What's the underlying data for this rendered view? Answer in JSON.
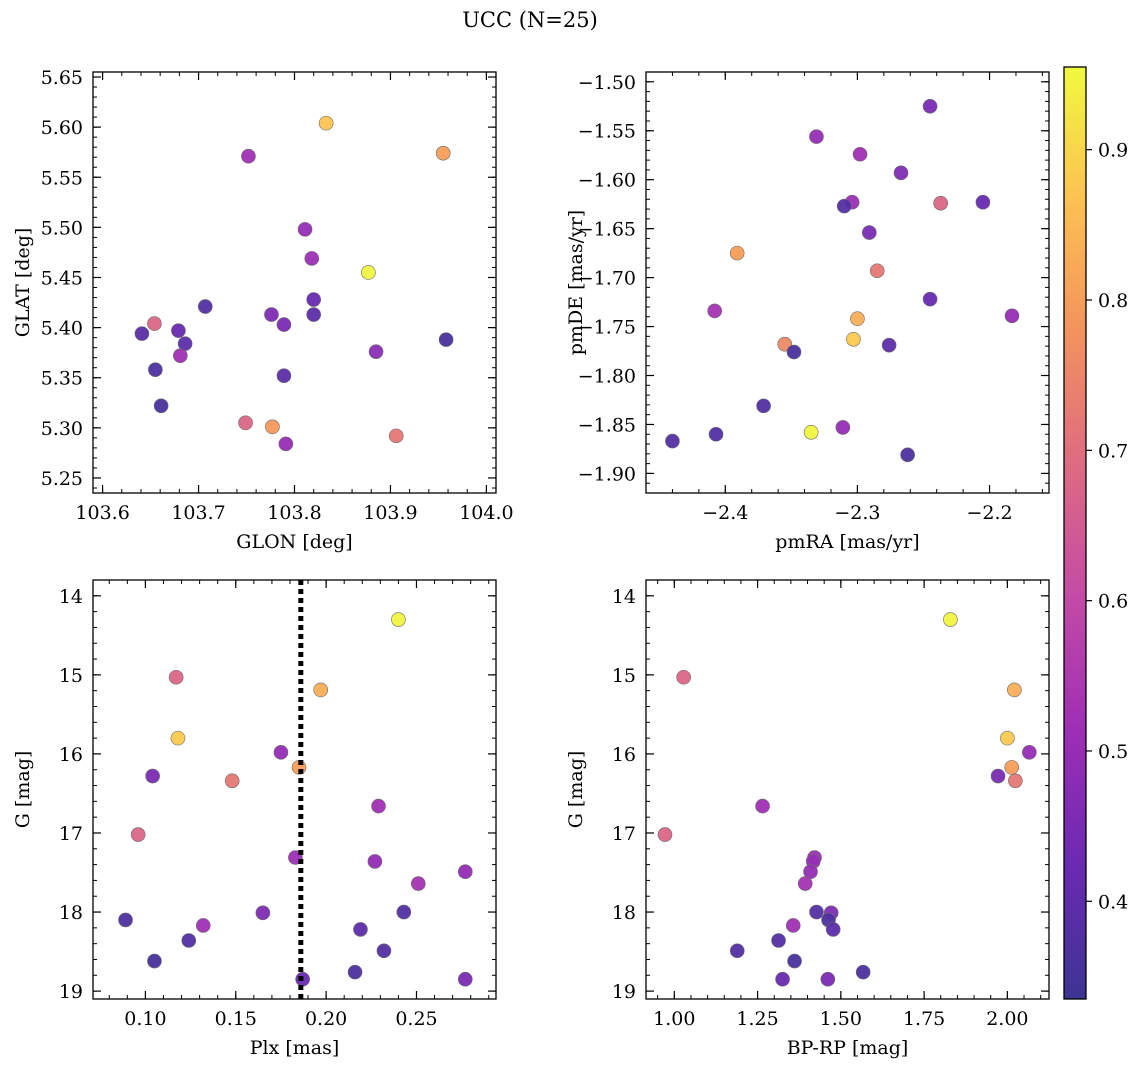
{
  "figure": {
    "title": "UCC (N=25)"
  },
  "colors": {
    "membership_colormap": "plasma",
    "cmap_stops": [
      "#3c3493",
      "#6a2ab2",
      "#9d2eb5",
      "#c24aa6",
      "#de6a82",
      "#f2925d",
      "#fdc152",
      "#f0f93f"
    ],
    "marker_edge": "#6b6b6b",
    "vertical_line": "#000000"
  },
  "colorbar": {
    "range": [
      0.335,
      0.955
    ],
    "ticks": [
      0.4,
      0.5,
      0.6,
      0.7,
      0.8,
      0.9
    ],
    "tick_labels": [
      "0.4",
      "0.5",
      "0.6",
      "0.7",
      "0.8",
      "0.9"
    ]
  },
  "chart_data": [
    {
      "type": "scatter",
      "id": "glon-glat",
      "xlabel": "GLON [deg]",
      "ylabel": "GLAT [deg]",
      "xlim": [
        103.59,
        104.01
      ],
      "ylim": [
        5.235,
        5.655
      ],
      "invert_y": false,
      "xticks": [
        103.6,
        103.7,
        103.8,
        103.9,
        104.0
      ],
      "xtick_labels": [
        "103.6",
        "103.7",
        "103.8",
        "103.9",
        "104.0"
      ],
      "yticks": [
        5.25,
        5.3,
        5.35,
        5.4,
        5.45,
        5.5,
        5.55,
        5.6,
        5.65
      ],
      "ytick_labels": [
        "5.25",
        "5.30",
        "5.35",
        "5.40",
        "5.45",
        "5.50",
        "5.55",
        "5.60",
        "5.65"
      ],
      "points": [
        {
          "x": 103.833,
          "y": 5.604,
          "c": 0.87
        },
        {
          "x": 103.955,
          "y": 5.574,
          "c": 0.8
        },
        {
          "x": 103.752,
          "y": 5.571,
          "c": 0.52
        },
        {
          "x": 103.811,
          "y": 5.498,
          "c": 0.5
        },
        {
          "x": 103.818,
          "y": 5.469,
          "c": 0.51
        },
        {
          "x": 103.877,
          "y": 5.455,
          "c": 0.95
        },
        {
          "x": 103.82,
          "y": 5.428,
          "c": 0.42
        },
        {
          "x": 103.707,
          "y": 5.421,
          "c": 0.38
        },
        {
          "x": 103.82,
          "y": 5.413,
          "c": 0.4
        },
        {
          "x": 103.776,
          "y": 5.413,
          "c": 0.46
        },
        {
          "x": 103.654,
          "y": 5.404,
          "c": 0.68
        },
        {
          "x": 103.789,
          "y": 5.403,
          "c": 0.45
        },
        {
          "x": 103.679,
          "y": 5.397,
          "c": 0.42
        },
        {
          "x": 103.641,
          "y": 5.394,
          "c": 0.39
        },
        {
          "x": 103.958,
          "y": 5.388,
          "c": 0.36
        },
        {
          "x": 103.686,
          "y": 5.384,
          "c": 0.4
        },
        {
          "x": 103.885,
          "y": 5.376,
          "c": 0.48
        },
        {
          "x": 103.681,
          "y": 5.372,
          "c": 0.52
        },
        {
          "x": 103.655,
          "y": 5.358,
          "c": 0.37
        },
        {
          "x": 103.789,
          "y": 5.352,
          "c": 0.4
        },
        {
          "x": 103.661,
          "y": 5.322,
          "c": 0.36
        },
        {
          "x": 103.749,
          "y": 5.305,
          "c": 0.68
        },
        {
          "x": 103.777,
          "y": 5.301,
          "c": 0.79
        },
        {
          "x": 103.906,
          "y": 5.292,
          "c": 0.72
        },
        {
          "x": 103.791,
          "y": 5.284,
          "c": 0.5
        }
      ]
    },
    {
      "type": "scatter",
      "id": "pmra-pmde",
      "xlabel": "pmRA [mas/yr]",
      "ylabel": "pmDE [mas/yr]",
      "xlim": [
        -2.46,
        -2.155
      ],
      "ylim": [
        -1.92,
        -1.49
      ],
      "invert_y": false,
      "xticks": [
        -2.4,
        -2.3,
        -2.2
      ],
      "xtick_labels": [
        "−2.4",
        "−2.3",
        "−2.2"
      ],
      "yticks": [
        -1.9,
        -1.85,
        -1.8,
        -1.75,
        -1.7,
        -1.65,
        -1.6,
        -1.55,
        -1.5
      ],
      "ytick_labels": [
        "−1.90",
        "−1.85",
        "−1.80",
        "−1.75",
        "−1.70",
        "−1.65",
        "−1.60",
        "−1.55",
        "−1.50"
      ],
      "points": [
        {
          "x": -2.245,
          "y": -1.525,
          "c": 0.45
        },
        {
          "x": -2.331,
          "y": -1.556,
          "c": 0.5
        },
        {
          "x": -2.298,
          "y": -1.574,
          "c": 0.52
        },
        {
          "x": -2.267,
          "y": -1.593,
          "c": 0.46
        },
        {
          "x": -2.304,
          "y": -1.623,
          "c": 0.51
        },
        {
          "x": -2.31,
          "y": -1.627,
          "c": 0.38
        },
        {
          "x": -2.237,
          "y": -1.624,
          "c": 0.68
        },
        {
          "x": -2.205,
          "y": -1.623,
          "c": 0.42
        },
        {
          "x": -2.291,
          "y": -1.654,
          "c": 0.45
        },
        {
          "x": -2.391,
          "y": -1.675,
          "c": 0.8
        },
        {
          "x": -2.285,
          "y": -1.693,
          "c": 0.72
        },
        {
          "x": -2.245,
          "y": -1.722,
          "c": 0.42
        },
        {
          "x": -2.408,
          "y": -1.734,
          "c": 0.53
        },
        {
          "x": -2.183,
          "y": -1.739,
          "c": 0.5
        },
        {
          "x": -2.3,
          "y": -1.742,
          "c": 0.83
        },
        {
          "x": -2.303,
          "y": -1.763,
          "c": 0.88
        },
        {
          "x": -2.355,
          "y": -1.768,
          "c": 0.76
        },
        {
          "x": -2.276,
          "y": -1.769,
          "c": 0.4
        },
        {
          "x": -2.348,
          "y": -1.776,
          "c": 0.36
        },
        {
          "x": -2.371,
          "y": -1.831,
          "c": 0.38
        },
        {
          "x": -2.311,
          "y": -1.853,
          "c": 0.5
        },
        {
          "x": -2.335,
          "y": -1.858,
          "c": 0.95
        },
        {
          "x": -2.407,
          "y": -1.86,
          "c": 0.38
        },
        {
          "x": -2.44,
          "y": -1.867,
          "c": 0.38
        },
        {
          "x": -2.262,
          "y": -1.881,
          "c": 0.37
        }
      ]
    },
    {
      "type": "scatter",
      "id": "plx-g",
      "xlabel": "Plx [mas]",
      "ylabel": "G [mag]",
      "xlim": [
        0.071,
        0.294
      ],
      "ylim": [
        13.8,
        19.1
      ],
      "invert_y": true,
      "xticks": [
        0.1,
        0.15,
        0.2,
        0.25
      ],
      "xtick_labels": [
        "0.10",
        "0.15",
        "0.20",
        "0.25"
      ],
      "yticks": [
        14,
        15,
        16,
        17,
        18,
        19
      ],
      "ytick_labels": [
        "14",
        "15",
        "16",
        "17",
        "18",
        "19"
      ],
      "vline": {
        "x": 0.186
      },
      "points": [
        {
          "x": 0.24,
          "y": 14.3,
          "c": 0.95
        },
        {
          "x": 0.117,
          "y": 15.03,
          "c": 0.68
        },
        {
          "x": 0.197,
          "y": 15.19,
          "c": 0.83
        },
        {
          "x": 0.118,
          "y": 15.8,
          "c": 0.88
        },
        {
          "x": 0.175,
          "y": 15.98,
          "c": 0.5
        },
        {
          "x": 0.185,
          "y": 16.17,
          "c": 0.8
        },
        {
          "x": 0.104,
          "y": 16.28,
          "c": 0.45
        },
        {
          "x": 0.148,
          "y": 16.34,
          "c": 0.72
        },
        {
          "x": 0.229,
          "y": 16.66,
          "c": 0.52
        },
        {
          "x": 0.096,
          "y": 17.02,
          "c": 0.68
        },
        {
          "x": 0.183,
          "y": 17.31,
          "c": 0.51
        },
        {
          "x": 0.227,
          "y": 17.36,
          "c": 0.5
        },
        {
          "x": 0.277,
          "y": 17.49,
          "c": 0.5
        },
        {
          "x": 0.251,
          "y": 17.64,
          "c": 0.53
        },
        {
          "x": 0.243,
          "y": 18.0,
          "c": 0.38
        },
        {
          "x": 0.165,
          "y": 18.01,
          "c": 0.46
        },
        {
          "x": 0.089,
          "y": 18.1,
          "c": 0.37
        },
        {
          "x": 0.132,
          "y": 18.17,
          "c": 0.52
        },
        {
          "x": 0.219,
          "y": 18.22,
          "c": 0.4
        },
        {
          "x": 0.124,
          "y": 18.36,
          "c": 0.38
        },
        {
          "x": 0.232,
          "y": 18.49,
          "c": 0.38
        },
        {
          "x": 0.105,
          "y": 18.62,
          "c": 0.36
        },
        {
          "x": 0.216,
          "y": 18.76,
          "c": 0.37
        },
        {
          "x": 0.187,
          "y": 18.85,
          "c": 0.42
        },
        {
          "x": 0.277,
          "y": 18.85,
          "c": 0.45
        }
      ]
    },
    {
      "type": "scatter",
      "id": "bprp-g",
      "xlabel": "BP-RP [mag]",
      "ylabel": "G [mag]",
      "xlim": [
        0.915,
        2.125
      ],
      "ylim": [
        13.8,
        19.1
      ],
      "invert_y": true,
      "xticks": [
        1.0,
        1.25,
        1.5,
        1.75,
        2.0
      ],
      "xtick_labels": [
        "1.00",
        "1.25",
        "1.50",
        "1.75",
        "2.00"
      ],
      "yticks": [
        14,
        15,
        16,
        17,
        18,
        19
      ],
      "ytick_labels": [
        "14",
        "15",
        "16",
        "17",
        "18",
        "19"
      ],
      "points": [
        {
          "x": 1.829,
          "y": 14.3,
          "c": 0.95
        },
        {
          "x": 1.028,
          "y": 15.03,
          "c": 0.68
        },
        {
          "x": 2.021,
          "y": 15.19,
          "c": 0.83
        },
        {
          "x": 2.0,
          "y": 15.8,
          "c": 0.88
        },
        {
          "x": 2.066,
          "y": 15.98,
          "c": 0.5
        },
        {
          "x": 2.013,
          "y": 16.17,
          "c": 0.8
        },
        {
          "x": 1.972,
          "y": 16.28,
          "c": 0.45
        },
        {
          "x": 2.024,
          "y": 16.34,
          "c": 0.72
        },
        {
          "x": 1.265,
          "y": 16.66,
          "c": 0.52
        },
        {
          "x": 0.972,
          "y": 17.02,
          "c": 0.68
        },
        {
          "x": 1.421,
          "y": 17.31,
          "c": 0.51
        },
        {
          "x": 1.417,
          "y": 17.36,
          "c": 0.5
        },
        {
          "x": 1.409,
          "y": 17.49,
          "c": 0.5
        },
        {
          "x": 1.393,
          "y": 17.64,
          "c": 0.53
        },
        {
          "x": 1.427,
          "y": 18.0,
          "c": 0.38
        },
        {
          "x": 1.471,
          "y": 18.01,
          "c": 0.46
        },
        {
          "x": 1.463,
          "y": 18.1,
          "c": 0.37
        },
        {
          "x": 1.357,
          "y": 18.17,
          "c": 0.52
        },
        {
          "x": 1.477,
          "y": 18.22,
          "c": 0.4
        },
        {
          "x": 1.313,
          "y": 18.36,
          "c": 0.38
        },
        {
          "x": 1.189,
          "y": 18.49,
          "c": 0.38
        },
        {
          "x": 1.361,
          "y": 18.62,
          "c": 0.36
        },
        {
          "x": 1.567,
          "y": 18.76,
          "c": 0.37
        },
        {
          "x": 1.325,
          "y": 18.85,
          "c": 0.42
        },
        {
          "x": 1.461,
          "y": 18.85,
          "c": 0.45
        }
      ]
    }
  ]
}
